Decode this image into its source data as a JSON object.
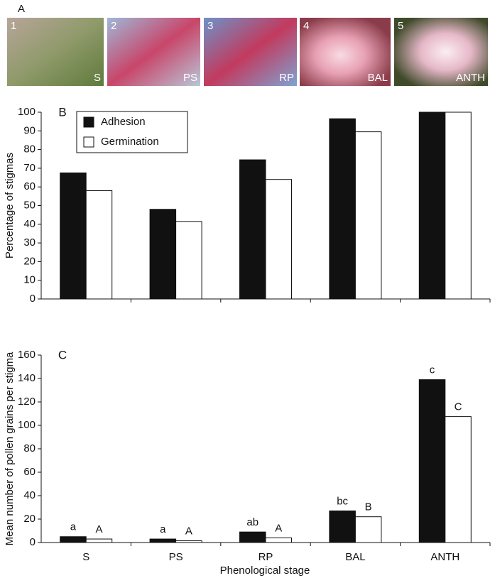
{
  "panel_a": {
    "panel_label": "A",
    "photos": [
      {
        "number": "1",
        "label": "S"
      },
      {
        "number": "2",
        "label": "PS"
      },
      {
        "number": "3",
        "label": "RP"
      },
      {
        "number": "4",
        "label": "BAL"
      },
      {
        "number": "5",
        "label": "ANTH"
      }
    ]
  },
  "chart_data": [
    {
      "type": "bar",
      "panel_label": "B",
      "y_label": "Percentage of stigmas",
      "ylim": [
        0,
        100
      ],
      "yticks": [
        0,
        10,
        20,
        30,
        40,
        50,
        60,
        70,
        80,
        90,
        100
      ],
      "legend": "top-left",
      "series": [
        {
          "name": "Adhesion",
          "color": "#111111",
          "values": [
            67.5,
            48,
            74.5,
            96.5,
            100
          ]
        },
        {
          "name": "Germination",
          "color": "#ffffff",
          "values": [
            58,
            41.5,
            64,
            89.5,
            100
          ]
        }
      ]
    },
    {
      "type": "bar",
      "panel_label": "C",
      "y_label": "Mean number of pollen grains per stigma",
      "x_label": "Phenological stage",
      "categories": [
        "S",
        "PS",
        "RP",
        "BAL",
        "ANTH"
      ],
      "ylim": [
        0,
        160
      ],
      "yticks": [
        0,
        20,
        40,
        60,
        80,
        100,
        120,
        140,
        160
      ],
      "series": [
        {
          "name": "Adhesion",
          "color": "#111111",
          "values": [
            5,
            3,
            9,
            27,
            139
          ],
          "labels": [
            "a",
            "a",
            "ab",
            "bc",
            "c"
          ]
        },
        {
          "name": "Germination",
          "color": "#ffffff",
          "values": [
            3,
            1.5,
            4,
            22,
            107.5
          ],
          "labels": [
            "A",
            "A",
            "A",
            "B",
            "C"
          ]
        }
      ]
    }
  ]
}
